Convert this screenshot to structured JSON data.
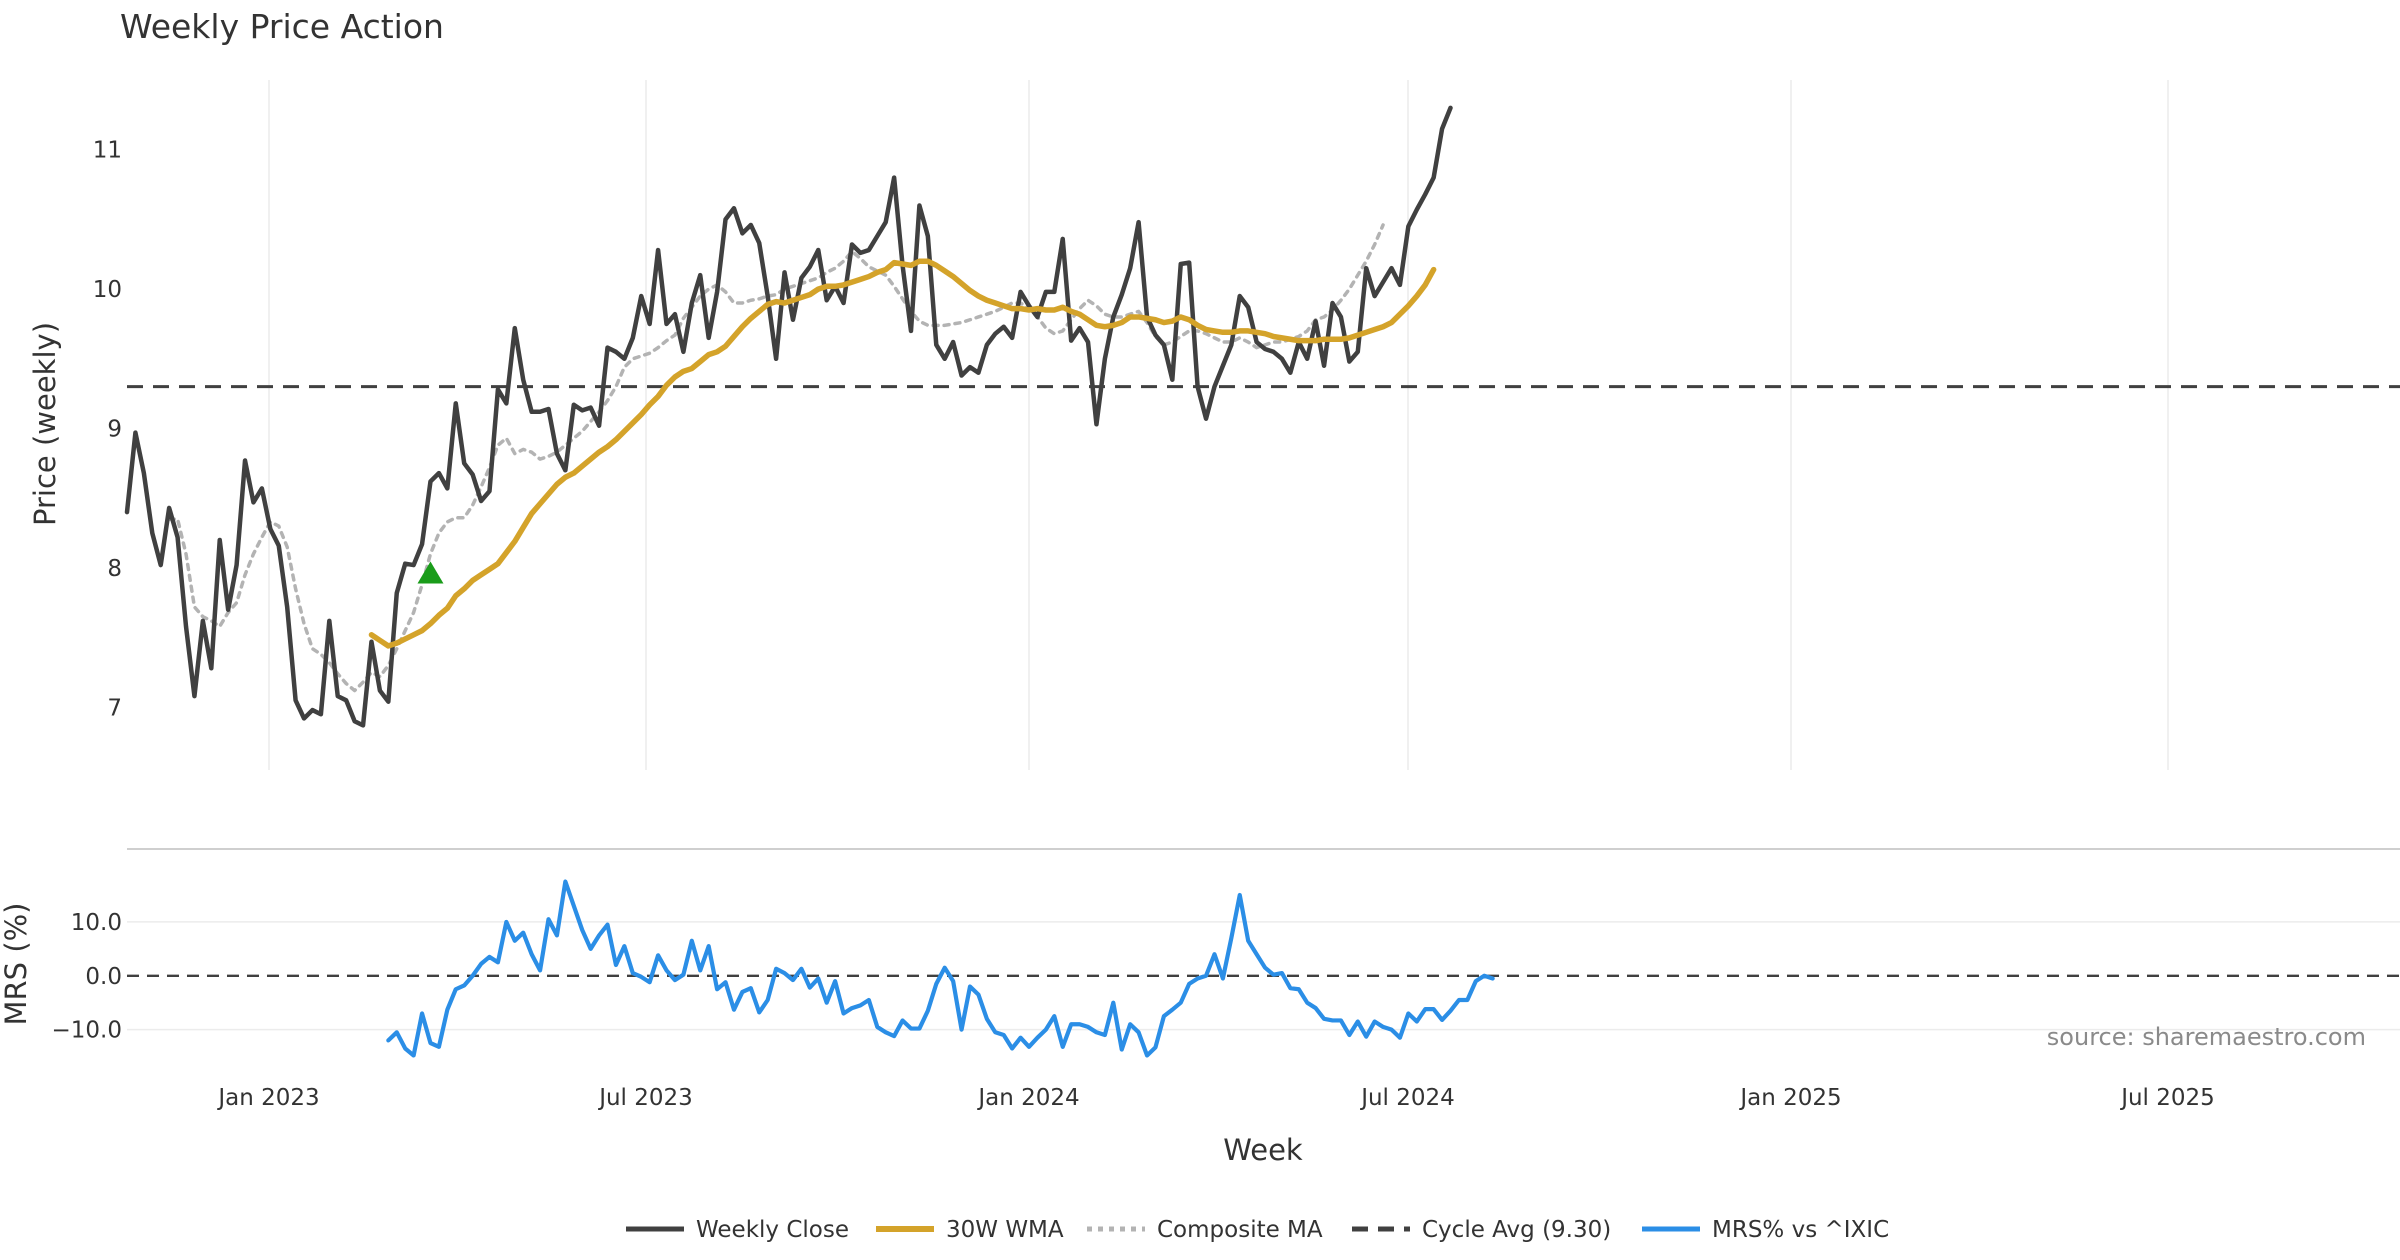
{
  "chart_data": {
    "type": "line",
    "title": "Weekly Price Action",
    "source_note": "source: sharemaestro.com",
    "xlabel": "Week",
    "x_ticks": [
      "Jan 2023",
      "Jul 2023",
      "Jan 2024",
      "Jul 2024",
      "Jan 2025",
      "Jul 2025"
    ],
    "x_start": "2022-10-31",
    "price_panel": {
      "ylabel": "Price (weekly)",
      "ylim": [
        6.55,
        11.5
      ],
      "y_ticks": [
        "7",
        "8",
        "9",
        "10",
        "11"
      ],
      "y_tick_values": [
        7,
        8,
        9,
        10,
        11
      ],
      "cycle_avg": 9.3,
      "buy_signal": {
        "week_index": 36,
        "value": 7.96
      },
      "series": [
        {
          "name": "Weekly Close",
          "color": "#404040",
          "start_index": 0,
          "values": [
            8.4,
            8.97,
            8.68,
            8.25,
            8.02,
            8.43,
            8.22,
            7.58,
            7.08,
            7.62,
            7.28,
            8.2,
            7.7,
            8.02,
            8.77,
            8.47,
            8.57,
            8.28,
            8.16,
            7.72,
            7.05,
            6.92,
            6.98,
            6.95,
            7.62,
            7.08,
            7.05,
            6.9,
            6.87,
            7.47,
            7.12,
            7.04,
            7.82,
            8.03,
            8.02,
            8.17,
            8.62,
            8.68,
            8.57,
            9.18,
            8.75,
            8.67,
            8.48,
            8.55,
            9.28,
            9.18,
            9.72,
            9.35,
            9.12,
            9.12,
            9.14,
            8.82,
            8.7,
            9.17,
            9.13,
            9.15,
            9.02,
            9.58,
            9.55,
            9.5,
            9.65,
            9.95,
            9.75,
            10.28,
            9.75,
            9.82,
            9.55,
            9.9,
            10.1,
            9.65,
            9.98,
            10.5,
            10.58,
            10.4,
            10.46,
            10.33,
            9.95,
            9.5,
            10.12,
            9.78,
            10.08,
            10.16,
            10.28,
            9.92,
            10.02,
            9.9,
            10.32,
            10.26,
            10.28,
            10.38,
            10.48,
            10.8,
            10.17,
            9.7,
            10.6,
            10.38,
            9.6,
            9.5,
            9.62,
            9.38,
            9.44,
            9.4,
            9.6,
            9.68,
            9.73,
            9.65,
            9.98,
            9.88,
            9.8,
            9.98,
            9.98,
            10.36,
            9.63,
            9.72,
            9.62,
            9.03,
            9.5,
            9.8,
            9.96,
            10.15,
            10.48,
            9.8,
            9.67,
            9.6,
            9.35,
            10.18,
            10.19,
            9.3,
            9.07,
            9.3,
            9.45,
            9.6,
            9.95,
            9.87,
            9.62,
            9.57,
            9.55,
            9.5,
            9.4,
            9.62,
            9.5,
            9.77,
            9.45,
            9.9,
            9.8,
            9.48,
            9.55,
            10.15,
            9.95,
            10.05,
            10.15,
            10.03,
            10.45,
            10.57,
            10.68,
            10.8,
            11.15,
            11.3
          ]
        },
        {
          "name": "30W WMA",
          "color": "#d4a32a",
          "start_index": 29,
          "values": [
            7.52,
            7.48,
            7.44,
            7.46,
            7.49,
            7.52,
            7.55,
            7.6,
            7.66,
            7.71,
            7.8,
            7.85,
            7.91,
            7.95,
            7.99,
            8.03,
            8.11,
            8.19,
            8.29,
            8.39,
            8.46,
            8.53,
            8.6,
            8.65,
            8.68,
            8.73,
            8.78,
            8.83,
            8.87,
            8.92,
            8.98,
            9.04,
            9.1,
            9.17,
            9.23,
            9.31,
            9.37,
            9.41,
            9.43,
            9.48,
            9.53,
            9.55,
            9.59,
            9.66,
            9.73,
            9.79,
            9.84,
            9.89,
            9.91,
            9.9,
            9.92,
            9.94,
            9.96,
            10.0,
            10.02,
            10.02,
            10.03,
            10.05,
            10.07,
            10.09,
            10.12,
            10.14,
            10.19,
            10.18,
            10.17,
            10.2,
            10.2,
            10.17,
            10.13,
            10.09,
            10.04,
            9.99,
            9.95,
            9.92,
            9.9,
            9.88,
            9.86,
            9.86,
            9.85,
            9.86,
            9.85,
            9.85,
            9.87,
            9.84,
            9.82,
            9.78,
            9.74,
            9.73,
            9.74,
            9.76,
            9.8,
            9.8,
            9.79,
            9.78,
            9.76,
            9.77,
            9.8,
            9.78,
            9.74,
            9.71,
            9.7,
            9.69,
            9.69,
            9.7,
            9.7,
            9.69,
            9.68,
            9.66,
            9.65,
            9.64,
            9.63,
            9.63,
            9.63,
            9.64,
            9.64,
            9.64,
            9.65,
            9.67,
            9.69,
            9.71,
            9.73,
            9.76,
            9.82,
            9.88,
            9.95,
            10.03,
            10.14
          ]
        },
        {
          "name": "Composite MA",
          "color": "#b3b3b3",
          "start_index": 5,
          "values": [
            8.35,
            8.35,
            8.1,
            7.72,
            7.65,
            7.62,
            7.58,
            7.68,
            7.75,
            7.95,
            8.1,
            8.22,
            8.33,
            8.3,
            8.15,
            7.85,
            7.6,
            7.42,
            7.38,
            7.32,
            7.24,
            7.17,
            7.12,
            7.18,
            7.25,
            7.22,
            7.3,
            7.42,
            7.55,
            7.68,
            7.88,
            8.1,
            8.25,
            8.33,
            8.36,
            8.36,
            8.45,
            8.58,
            8.72,
            8.88,
            8.93,
            8.82,
            8.85,
            8.83,
            8.78,
            8.8,
            8.83,
            8.88,
            8.93,
            8.98,
            9.05,
            9.12,
            9.2,
            9.3,
            9.44,
            9.5,
            9.52,
            9.54,
            9.58,
            9.63,
            9.67,
            9.79,
            9.87,
            9.95,
            10.0,
            10.03,
            9.98,
            9.9,
            9.9,
            9.92,
            9.93,
            9.95,
            9.96,
            10.0,
            10.02,
            10.04,
            10.06,
            10.08,
            10.12,
            10.15,
            10.2,
            10.27,
            10.22,
            10.16,
            10.13,
            10.1,
            10.02,
            9.93,
            9.84,
            9.77,
            9.74,
            9.74,
            9.74,
            9.75,
            9.76,
            9.78,
            9.8,
            9.82,
            9.84,
            9.87,
            9.9,
            9.9,
            9.86,
            9.8,
            9.72,
            9.68,
            9.7,
            9.78,
            9.86,
            9.92,
            9.88,
            9.82,
            9.8,
            9.8,
            9.82,
            9.84,
            9.76,
            9.66,
            9.6,
            9.62,
            9.66,
            9.7,
            9.7,
            9.68,
            9.65,
            9.62,
            9.62,
            9.65,
            9.62,
            9.58,
            9.6,
            9.62,
            9.62,
            9.64,
            9.66,
            9.7,
            9.78,
            9.8,
            9.85,
            9.92,
            10.0,
            10.1,
            10.2,
            10.32,
            10.46
          ]
        }
      ]
    },
    "mrs_panel": {
      "ylabel": "MRS (%)",
      "ylim": [
        -17.5,
        21.5
      ],
      "y_ticks": [
        "10.0",
        "0.0",
        "−10.0"
      ],
      "y_tick_values": [
        10,
        0,
        -10
      ],
      "series": {
        "name": "MRS% vs ^IXIC",
        "color": "#2b8ee6",
        "start_index": 31,
        "values": [
          -12,
          -10.5,
          -13.5,
          -14.8,
          -7,
          -12.5,
          -13.2,
          -6.3,
          -2.5,
          -1.8,
          0,
          2.2,
          3.5,
          2.5,
          10,
          6.5,
          8,
          4,
          1,
          10.5,
          7.5,
          17.5,
          13,
          8.5,
          5,
          7.5,
          9.5,
          2,
          5.5,
          0.5,
          -0.2,
          -1.2,
          3.8,
          1,
          -0.8,
          0.2,
          6.5,
          1,
          5.5,
          -2.5,
          -1.2,
          -6.3,
          -3,
          -2.3,
          -6.8,
          -4.5,
          1.3,
          0.5,
          -0.8,
          1.3,
          -2.2,
          -0.5,
          -5,
          -1,
          -7,
          -6,
          -5.5,
          -4.5,
          -9.5,
          -10.5,
          -11.2,
          -8.3,
          -9.8,
          -9.8,
          -6.5,
          -1.5,
          1.5,
          -1,
          -10,
          -2,
          -3.5,
          -8,
          -10.5,
          -11,
          -13.5,
          -11.5,
          -13.2,
          -11.5,
          -10,
          -7.5,
          -13.2,
          -9,
          -9,
          -9.5,
          -10.5,
          -11,
          -5,
          -13.7,
          -9,
          -10.5,
          -14.8,
          -13.3,
          -7.5,
          -6.3,
          -5,
          -1.5,
          -0.5,
          0,
          4,
          -0.5,
          7,
          15,
          6.5,
          4,
          1.5,
          0.2,
          0.5,
          -2.3,
          -2.5,
          -5,
          -6,
          -8,
          -8.3,
          -8.3,
          -11,
          -8.5,
          -11.3,
          -8.5,
          -9.5,
          -10,
          -11.5,
          -7,
          -8.5,
          -6.2,
          -6.2,
          -8.2,
          -6.5,
          -4.5,
          -4.5,
          -1,
          0,
          -0.5
        ]
      }
    },
    "legend": [
      {
        "label": "Weekly Close",
        "style": "solid",
        "color": "#404040"
      },
      {
        "label": "30W WMA",
        "style": "solid-thick",
        "color": "#d4a32a"
      },
      {
        "label": "Composite MA",
        "style": "dotted",
        "color": "#b3b3b3"
      },
      {
        "label": "Cycle Avg (9.30)",
        "style": "dashed",
        "color": "#404040"
      },
      {
        "label": "MRS% vs ^IXIC",
        "style": "solid",
        "color": "#2b8ee6"
      }
    ]
  }
}
